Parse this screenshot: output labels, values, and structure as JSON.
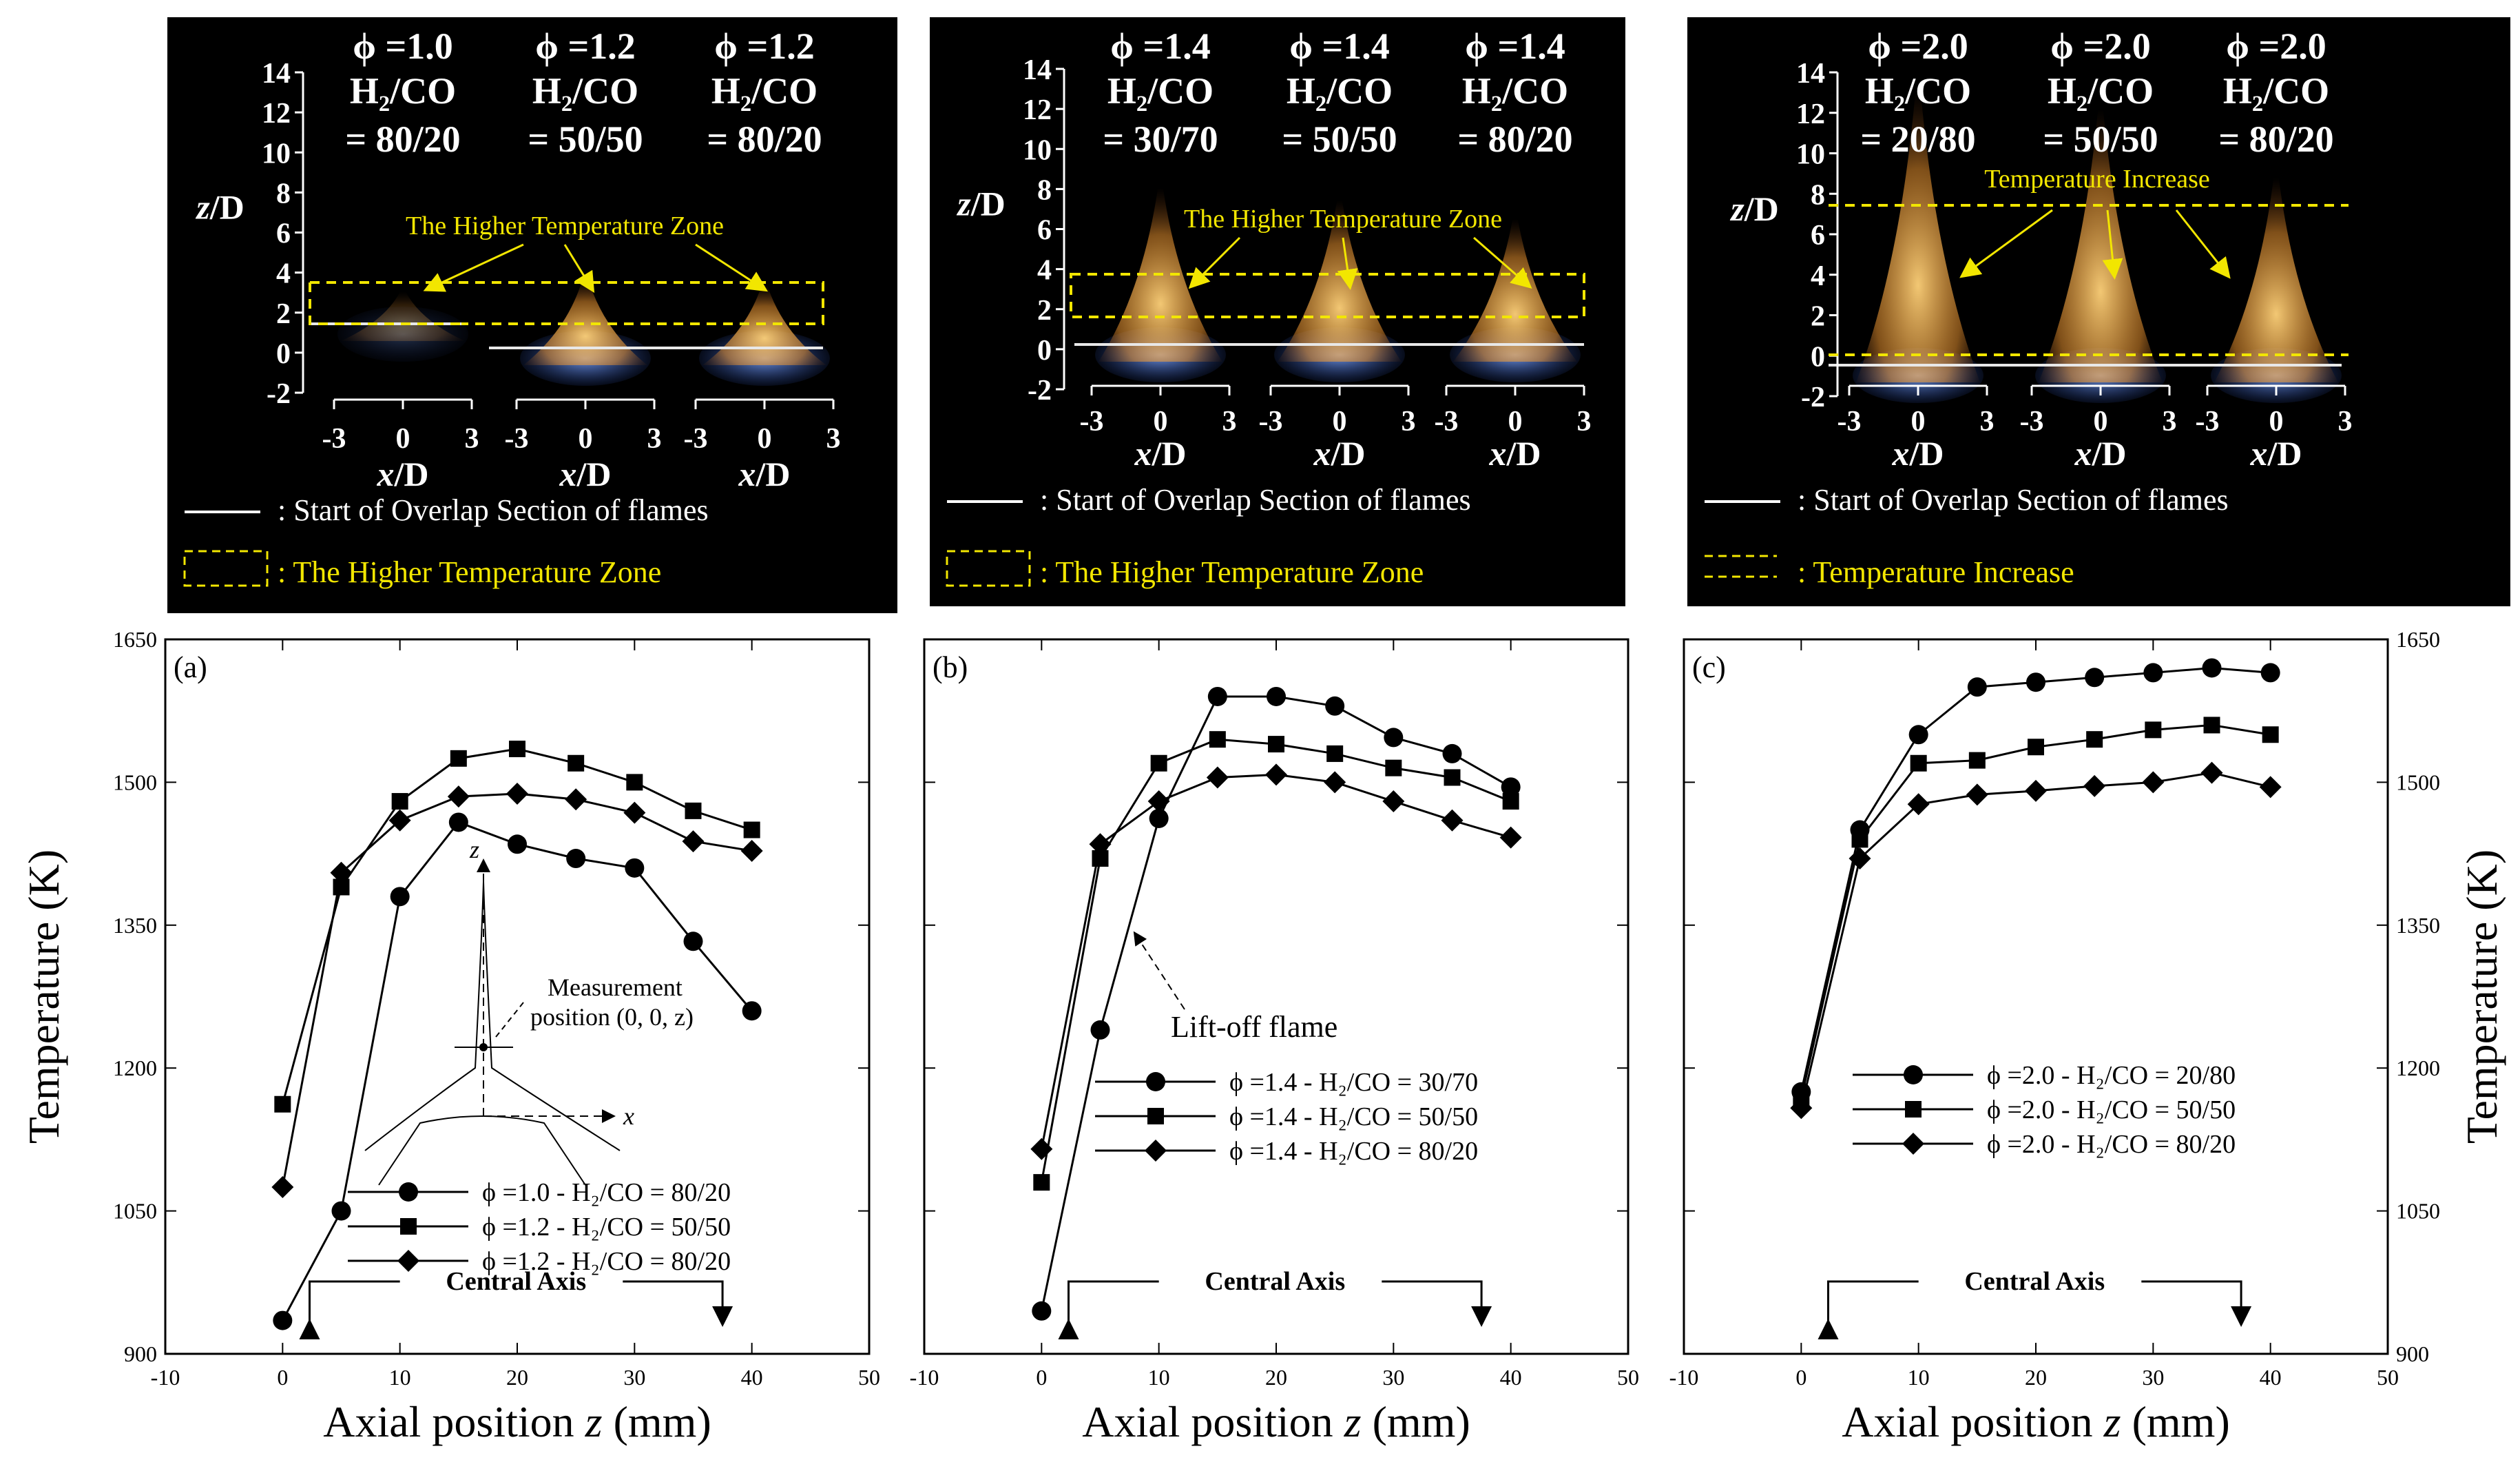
{
  "photo_panels": [
    {
      "id": "a",
      "flames": [
        {
          "phi": "ϕ =1.0",
          "h2co_label": "H₂/CO",
          "ratio": "= 80/20"
        },
        {
          "phi": "ϕ =1.2",
          "h2co_label": "H₂/CO",
          "ratio": "= 50/50"
        },
        {
          "phi": "ϕ =1.2",
          "h2co_label": "H₂/CO",
          "ratio": "= 80/20"
        }
      ],
      "y_axis_label": "z/D",
      "y_ticks": [
        "14",
        "12",
        "10",
        "8",
        "6",
        "4",
        "2",
        "0",
        "-2"
      ],
      "x_ticks": [
        "-3",
        "0",
        "3"
      ],
      "x_axis_label": "x/D",
      "zone_label": "The Higher Temperature Zone",
      "legend_line": ": Start of Overlap Section of flames",
      "legend_box": ": The Higher Temperature Zone"
    },
    {
      "id": "b",
      "flames": [
        {
          "phi": "ϕ =1.4",
          "h2co_label": "H₂/CO",
          "ratio": "= 30/70"
        },
        {
          "phi": "ϕ =1.4",
          "h2co_label": "H₂/CO",
          "ratio": "= 50/50"
        },
        {
          "phi": "ϕ =1.4",
          "h2co_label": "H₂/CO",
          "ratio": "= 80/20"
        }
      ],
      "y_axis_label": "z/D",
      "y_ticks": [
        "14",
        "12",
        "10",
        "8",
        "6",
        "4",
        "2",
        "0",
        "-2"
      ],
      "x_ticks": [
        "-3",
        "0",
        "3"
      ],
      "x_axis_label": "x/D",
      "zone_label": "The Higher Temperature Zone",
      "legend_line": ": Start of Overlap Section of flames",
      "legend_box": ": The Higher Temperature Zone"
    },
    {
      "id": "c",
      "flames": [
        {
          "phi": "ϕ =2.0",
          "h2co_label": "H₂/CO",
          "ratio": "= 20/80"
        },
        {
          "phi": "ϕ =2.0",
          "h2co_label": "H₂/CO",
          "ratio": "= 50/50"
        },
        {
          "phi": "ϕ =2.0",
          "h2co_label": "H₂/CO",
          "ratio": "= 80/20"
        }
      ],
      "y_axis_label": "z/D",
      "y_ticks": [
        "14",
        "12",
        "10",
        "8",
        "6",
        "4",
        "2",
        "0",
        "-2"
      ],
      "x_ticks": [
        "-3",
        "0",
        "3"
      ],
      "x_axis_label": "x/D",
      "zone_label": "Temperature Increase",
      "legend_line": ": Start of Overlap Section of flames",
      "legend_box": ": Temperature Increase"
    }
  ],
  "colors": {
    "photo_bg": "#000000",
    "highlight": "#f2e600",
    "line": "#000000",
    "flame_orange": "#f7b24a",
    "flame_blue": "#3a6fd8"
  },
  "chart_data": [
    {
      "type": "line",
      "panel_label": "(a)",
      "xlabel": "Axial position z (mm)",
      "ylabel": "Temperature (K)",
      "xlim": [
        -10,
        50
      ],
      "ylim": [
        900,
        1650
      ],
      "x_ticks": [
        -10,
        0,
        10,
        20,
        30,
        40,
        50
      ],
      "y_ticks": [
        900,
        1050,
        1200,
        1350,
        1500,
        1650
      ],
      "x": [
        0,
        5,
        10,
        15,
        20,
        25,
        30,
        35,
        40
      ],
      "series": [
        {
          "name": "ϕ =1.0 - H₂/CO = 80/20",
          "marker": "circle",
          "values": [
            935,
            1050,
            1380,
            1458,
            1435,
            1420,
            1410,
            1333,
            1260
          ]
        },
        {
          "name": "ϕ =1.2 - H₂/CO = 50/50",
          "marker": "square",
          "values": [
            1162,
            1390,
            1480,
            1525,
            1535,
            1520,
            1500,
            1470,
            1450
          ]
        },
        {
          "name": "ϕ =1.2 - H₂/CO = 80/20",
          "marker": "diamond",
          "values": [
            1075,
            1405,
            1460,
            1485,
            1488,
            1482,
            1468,
            1438,
            1428
          ]
        }
      ],
      "annotation": "Central Axis",
      "inset": {
        "axis_z": "z",
        "axis_x": "x",
        "label_line1": "Measurement",
        "label_line2": "position (0, 0, z)"
      }
    },
    {
      "type": "line",
      "panel_label": "(b)",
      "xlabel": "Axial position z (mm)",
      "ylabel": "",
      "xlim": [
        -10,
        50
      ],
      "ylim": [
        900,
        1650
      ],
      "x_ticks": [
        -10,
        0,
        10,
        20,
        30,
        40,
        50
      ],
      "x": [
        0,
        5,
        10,
        15,
        20,
        25,
        30,
        35,
        40
      ],
      "series": [
        {
          "name": "ϕ =1.4 - H₂/CO = 30/70",
          "marker": "circle",
          "values": [
            945,
            1240,
            1462,
            1590,
            1590,
            1580,
            1547,
            1530,
            1495
          ]
        },
        {
          "name": "ϕ =1.4 - H₂/CO = 50/50",
          "marker": "square",
          "values": [
            1080,
            1420,
            1520,
            1545,
            1540,
            1530,
            1515,
            1505,
            1480
          ]
        },
        {
          "name": "ϕ =1.4 - H₂/CO = 80/20",
          "marker": "diamond",
          "values": [
            1115,
            1435,
            1480,
            1505,
            1508,
            1500,
            1480,
            1460,
            1442
          ]
        }
      ],
      "annotation": "Central Axis",
      "callout": "Lift-off flame"
    },
    {
      "type": "line",
      "panel_label": "(c)",
      "xlabel": "Axial position z (mm)",
      "ylabel": "Temperature (K)",
      "xlim": [
        -10,
        50
      ],
      "ylim": [
        900,
        1650
      ],
      "x_ticks": [
        -10,
        0,
        10,
        20,
        30,
        40,
        50
      ],
      "y_ticks": [
        900,
        1050,
        1200,
        1350,
        1500,
        1650
      ],
      "x": [
        0,
        5,
        10,
        15,
        20,
        25,
        30,
        35,
        40
      ],
      "series": [
        {
          "name": "ϕ =2.0 - H₂/CO = 20/80",
          "marker": "circle",
          "values": [
            1175,
            1450,
            1550,
            1600,
            1605,
            1610,
            1615,
            1620,
            1615
          ]
        },
        {
          "name": "ϕ =2.0 - H₂/CO = 50/50",
          "marker": "square",
          "values": [
            1168,
            1440,
            1520,
            1523,
            1537,
            1545,
            1555,
            1560,
            1550
          ]
        },
        {
          "name": "ϕ =2.0 - H₂/CO = 80/20",
          "marker": "diamond",
          "values": [
            1158,
            1420,
            1477,
            1487,
            1491,
            1496,
            1500,
            1510,
            1495
          ]
        }
      ],
      "annotation": "Central Axis"
    }
  ]
}
